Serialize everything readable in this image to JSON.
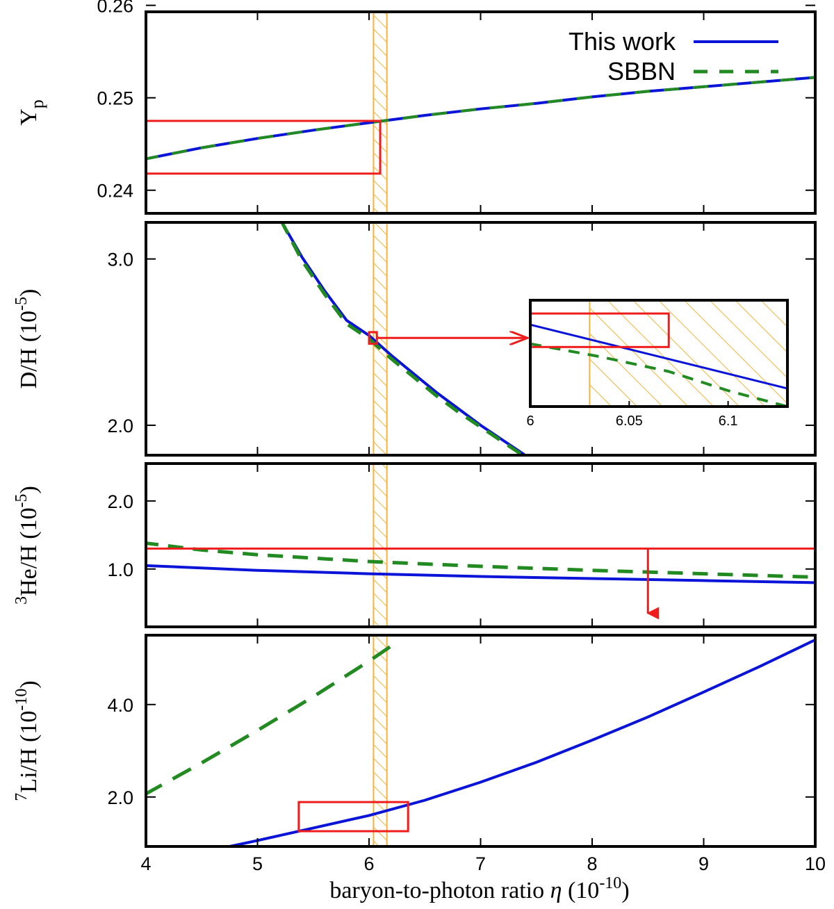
{
  "chart_data": {
    "type": "line",
    "x_label": {
      "main": "baryon-to-photon ratio ",
      "sym": "η",
      "unit_open": " (10",
      "unit_exp": "-10",
      "unit_close": ")"
    },
    "xlim": [
      4,
      10
    ],
    "x_ticks": [
      "4",
      "5",
      "6",
      "7",
      "8",
      "9",
      "10"
    ],
    "legend": {
      "placement": "top-right",
      "entries": [
        {
          "name": "This work",
          "color": "#0a14d8",
          "style": "solid"
        },
        {
          "name": "SBBN",
          "color": "#218a21",
          "style": "dashed"
        }
      ]
    },
    "eta_band": {
      "x": [
        6.04,
        6.16
      ],
      "color": "#f6b23b",
      "hatched": true
    },
    "panels": [
      {
        "id": "yp",
        "ylabel": {
          "base": "Y",
          "sub": "p"
        },
        "ylim": [
          0.2375,
          0.2593
        ],
        "y_ticks": [
          {
            "v": 0.24,
            "t": "0.24"
          },
          {
            "v": 0.25,
            "t": "0.25"
          },
          {
            "v": 0.26,
            "t": "0.26"
          }
        ],
        "series": [
          {
            "name": "This work",
            "x": [
              4,
              4.5,
              5,
              5.5,
              6,
              6.5,
              7,
              7.5,
              8,
              8.5,
              9,
              9.5,
              10
            ],
            "y": [
              0.2434,
              0.2446,
              0.2456,
              0.2465,
              0.2473,
              0.2481,
              0.2488,
              0.2494,
              0.2501,
              0.2507,
              0.2512,
              0.2517,
              0.2522
            ]
          },
          {
            "name": "SBBN",
            "x": [
              4,
              4.5,
              5,
              5.5,
              6,
              6.5,
              7,
              7.5,
              8,
              8.5,
              9,
              9.5,
              10
            ],
            "y": [
              0.2434,
              0.2446,
              0.2456,
              0.2465,
              0.2473,
              0.2481,
              0.2488,
              0.2494,
              0.2501,
              0.2507,
              0.2512,
              0.2517,
              0.2522
            ]
          }
        ],
        "obs_box": {
          "x": [
            4,
            6.1
          ],
          "y": [
            0.2418,
            0.2475
          ]
        }
      },
      {
        "id": "dh",
        "ylabel": {
          "base": "D/H (10",
          "sup": "-5",
          "tail": ")"
        },
        "ylim": [
          1.82,
          3.22
        ],
        "y_ticks": [
          {
            "v": 2.0,
            "t": "2.0"
          },
          {
            "v": 3.0,
            "t": "3.0"
          }
        ],
        "series": [
          {
            "name": "This work",
            "x": [
              5.22,
              5.4,
              5.6,
              5.8,
              6.0,
              6.2,
              6.4,
              6.6,
              6.8,
              7.0,
              7.2,
              7.4
            ],
            "y": [
              3.22,
              3.01,
              2.81,
              2.63,
              2.54,
              2.42,
              2.31,
              2.2,
              2.1,
              2.0,
              1.91,
              1.82
            ]
          },
          {
            "name": "SBBN",
            "x": [
              5.22,
              5.4,
              5.6,
              5.8,
              6.0,
              6.2,
              6.4,
              6.6,
              6.8,
              7.0,
              7.2,
              7.4
            ],
            "y": [
              3.22,
              2.99,
              2.79,
              2.61,
              2.52,
              2.4,
              2.29,
              2.18,
              2.08,
              1.99,
              1.9,
              1.81
            ]
          }
        ],
        "obs_box": {
          "x": [
            6.0,
            6.07
          ],
          "y": [
            2.49,
            2.56
          ]
        },
        "inset": {
          "xlim": [
            6.0,
            6.13
          ],
          "ylim": [
            2.49,
            2.59
          ],
          "x_ticks": [
            {
              "v": 6.0,
              "t": "6"
            },
            {
              "v": 6.05,
              "t": "6.05"
            },
            {
              "v": 6.1,
              "t": "6.1"
            }
          ],
          "series": [
            {
              "name": "This work",
              "x": [
                6.0,
                6.13
              ],
              "y": [
                2.567,
                2.507
              ]
            },
            {
              "name": "SBBN",
              "x": [
                6.0,
                6.035,
                6.07,
                6.1,
                6.13
              ],
              "y": [
                2.549,
                2.537,
                2.523,
                2.505,
                2.49
              ]
            }
          ],
          "obs_box": {
            "x": [
              6.0,
              6.07
            ],
            "y": [
              2.546,
              2.5775
            ]
          },
          "band": {
            "x": [
              6.03,
              6.13
            ]
          }
        }
      },
      {
        "id": "he3",
        "ylabel": {
          "pre_sup": "3",
          "base": "He/H (10",
          "sup": "-5",
          "tail": ")"
        },
        "ylim": [
          0.15,
          2.55
        ],
        "y_ticks": [
          {
            "v": 1.0,
            "t": "1.0"
          },
          {
            "v": 2.0,
            "t": "2.0"
          }
        ],
        "series": [
          {
            "name": "This work",
            "x": [
              4,
              5,
              6,
              7,
              8,
              9,
              10
            ],
            "y": [
              1.05,
              0.98,
              0.93,
              0.89,
              0.86,
              0.83,
              0.8
            ]
          },
          {
            "name": "SBBN",
            "x": [
              4,
              4.5,
              5,
              6,
              7,
              8,
              9,
              10
            ],
            "y": [
              1.38,
              1.28,
              1.21,
              1.11,
              1.04,
              0.98,
              0.93,
              0.88
            ]
          }
        ],
        "upper_limit": {
          "y": 1.3,
          "arrow_x": 8.5,
          "arrow_to": 0.35
        }
      },
      {
        "id": "li7",
        "ylabel": {
          "pre_sup": "7",
          "base": "Li/H (10",
          "sup": "-10",
          "tail": ")"
        },
        "ylim": [
          0.93,
          5.5
        ],
        "y_ticks": [
          {
            "v": 2.0,
            "t": "2.0"
          },
          {
            "v": 4.0,
            "t": "4.0"
          }
        ],
        "series": [
          {
            "name": "This work",
            "x": [
              4.75,
              5,
              5.5,
              6,
              6.5,
              7,
              7.5,
              8,
              8.5,
              9,
              9.5,
              10
            ],
            "y": [
              0.93,
              1.06,
              1.33,
              1.6,
              1.93,
              2.32,
              2.75,
              3.23,
              3.73,
              4.27,
              4.82,
              5.4
            ]
          },
          {
            "name": "SBBN",
            "x": [
              4,
              4.5,
              5,
              5.5,
              6,
              6.25
            ],
            "y": [
              2.07,
              2.74,
              3.44,
              4.17,
              4.94,
              5.35
            ]
          }
        ],
        "obs_box": {
          "x": [
            5.37,
            6.35
          ],
          "y": [
            1.26,
            1.89
          ]
        }
      }
    ]
  }
}
